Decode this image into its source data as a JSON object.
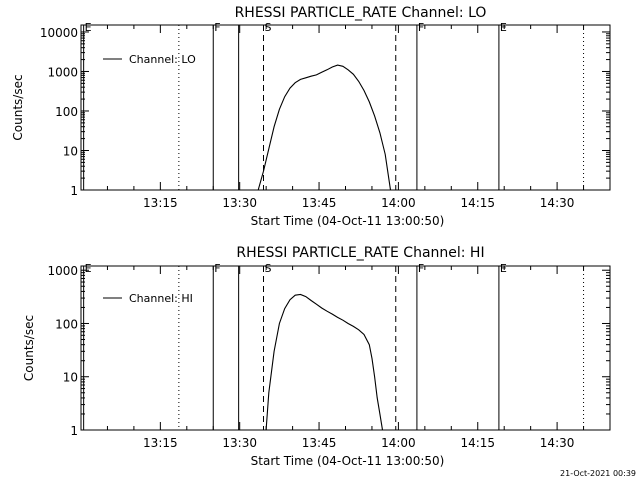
{
  "footer_timestamp": "21-Oct-2021 00:39",
  "chart_data": [
    {
      "type": "line",
      "title": "RHESSI PARTICLE_RATE Channel: LO",
      "xlabel": "Start Time (04-Oct-11 13:00:50)",
      "ylabel": "Counts/sec",
      "yscale": "log",
      "ylim": [
        1,
        15000
      ],
      "xlim_minutes": [
        0,
        100
      ],
      "x_ticks": [
        {
          "minute": 15,
          "label": "13:15"
        },
        {
          "minute": 30,
          "label": "13:30"
        },
        {
          "minute": 45,
          "label": "13:45"
        },
        {
          "minute": 60,
          "label": "14:00"
        },
        {
          "minute": 75,
          "label": "14:15"
        },
        {
          "minute": 90,
          "label": "14:30"
        }
      ],
      "y_ticks": [
        {
          "value": 1,
          "label": "1"
        },
        {
          "value": 10,
          "label": "10"
        },
        {
          "value": 100,
          "label": "100"
        },
        {
          "value": 1000,
          "label": "1000"
        },
        {
          "value": 10000,
          "label": "10000"
        }
      ],
      "legend": {
        "label": "Channel: LO",
        "position": "top-left"
      },
      "markers": [
        {
          "minute": 0.5,
          "style": "solid",
          "label": "E"
        },
        {
          "minute": 18.5,
          "style": "dotted",
          "label": ""
        },
        {
          "minute": 25,
          "style": "solid",
          "label": "F"
        },
        {
          "minute": 29.8,
          "style": "solid",
          "label": ""
        },
        {
          "minute": 34.5,
          "style": "dashed",
          "label": "S"
        },
        {
          "minute": 59.5,
          "style": "dashed",
          "label": ""
        },
        {
          "minute": 63.5,
          "style": "solid",
          "label": "F"
        },
        {
          "minute": 79,
          "style": "solid",
          "label": "E"
        },
        {
          "minute": 95,
          "style": "dotted",
          "label": ""
        }
      ],
      "series": [
        {
          "name": "Channel: LO",
          "x_minutes": [
            33.5,
            34.5,
            35.5,
            36.5,
            37.5,
            38.5,
            39.5,
            40.5,
            41.5,
            42.5,
            43.5,
            44.5,
            45.5,
            46.5,
            47.5,
            48.5,
            49.5,
            50.5,
            51.5,
            52.5,
            53.5,
            54.5,
            55.5,
            56.5,
            57.5,
            58.5
          ],
          "y": [
            1,
            3,
            11,
            40,
            110,
            230,
            380,
            520,
            630,
            690,
            760,
            820,
            950,
            1100,
            1300,
            1450,
            1350,
            1100,
            850,
            560,
            330,
            170,
            75,
            28,
            8,
            1
          ]
        }
      ]
    },
    {
      "type": "line",
      "title": "RHESSI PARTICLE_RATE Channel: HI",
      "xlabel": "Start Time (04-Oct-11 13:00:50)",
      "ylabel": "Counts/sec",
      "yscale": "log",
      "ylim": [
        1,
        1200
      ],
      "xlim_minutes": [
        0,
        100
      ],
      "x_ticks": [
        {
          "minute": 15,
          "label": "13:15"
        },
        {
          "minute": 30,
          "label": "13:30"
        },
        {
          "minute": 45,
          "label": "13:45"
        },
        {
          "minute": 60,
          "label": "14:00"
        },
        {
          "minute": 75,
          "label": "14:15"
        },
        {
          "minute": 90,
          "label": "14:30"
        }
      ],
      "y_ticks": [
        {
          "value": 1,
          "label": "1"
        },
        {
          "value": 10,
          "label": "10"
        },
        {
          "value": 100,
          "label": "100"
        },
        {
          "value": 1000,
          "label": "1000"
        }
      ],
      "legend": {
        "label": "Channel: HI",
        "position": "top-left"
      },
      "markers": [
        {
          "minute": 0.5,
          "style": "solid",
          "label": "E"
        },
        {
          "minute": 18.5,
          "style": "dotted",
          "label": ""
        },
        {
          "minute": 25,
          "style": "solid",
          "label": "F"
        },
        {
          "minute": 29.8,
          "style": "solid",
          "label": ""
        },
        {
          "minute": 34.5,
          "style": "dashed",
          "label": "S"
        },
        {
          "minute": 59.5,
          "style": "dashed",
          "label": ""
        },
        {
          "minute": 63.5,
          "style": "solid",
          "label": "F"
        },
        {
          "minute": 79,
          "style": "solid",
          "label": "E"
        },
        {
          "minute": 95,
          "style": "dotted",
          "label": ""
        }
      ],
      "series": [
        {
          "name": "Channel: HI",
          "x_minutes": [
            35,
            35.5,
            36.5,
            37.5,
            38.5,
            39.5,
            40.5,
            41.5,
            42.5,
            43.5,
            44.5,
            45.5,
            46.5,
            47.5,
            48.5,
            49.5,
            50.5,
            51.5,
            52.5,
            53.5,
            54.5,
            55,
            55.5,
            56,
            56.5,
            57
          ],
          "y": [
            1,
            5,
            30,
            100,
            190,
            280,
            340,
            350,
            320,
            270,
            230,
            195,
            170,
            150,
            130,
            115,
            100,
            88,
            76,
            62,
            40,
            22,
            10,
            4,
            2,
            1
          ]
        }
      ]
    }
  ]
}
